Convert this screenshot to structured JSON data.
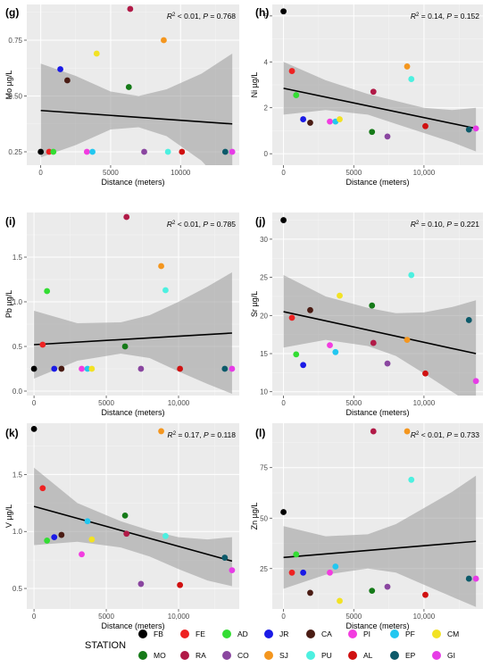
{
  "stations": [
    {
      "code": "FB",
      "color": "#000000"
    },
    {
      "code": "FE",
      "color": "#ee2222"
    },
    {
      "code": "AD",
      "color": "#33dd33"
    },
    {
      "code": "JR",
      "color": "#1a1ae6"
    },
    {
      "code": "CA",
      "color": "#4a1c14"
    },
    {
      "code": "PI",
      "color": "#f23ce0"
    },
    {
      "code": "PF",
      "color": "#22c7f0"
    },
    {
      "code": "CM",
      "color": "#f2e224"
    },
    {
      "code": "MO",
      "color": "#157a18"
    },
    {
      "code": "RA",
      "color": "#b11a47"
    },
    {
      "code": "CO",
      "color": "#8a46a0"
    },
    {
      "code": "SJ",
      "color": "#f4961e"
    },
    {
      "code": "PU",
      "color": "#4df0e0"
    },
    {
      "code": "AL",
      "color": "#d01010"
    },
    {
      "code": "EP",
      "color": "#0c5a6a"
    },
    {
      "code": "GI",
      "color": "#e63ce6"
    }
  ],
  "legend": {
    "title": "STATION"
  },
  "chart_data": [
    {
      "panel": "(g)",
      "type": "scatter",
      "ylabel": "Mo µg/L",
      "xlabel": "Distance (meters)",
      "stat_r2": "< 0.01",
      "stat_p": "0.768",
      "xlim": [
        -1000,
        14200
      ],
      "ylim": [
        0.19,
        0.91
      ],
      "xticks": [
        {
          "v": 0,
          "t": "0"
        },
        {
          "v": 5000,
          "t": "5000"
        },
        {
          "v": 10000,
          "t": "10000"
        }
      ],
      "yticks": [
        {
          "v": 0.25,
          "t": "0.25"
        },
        {
          "v": 0.5,
          "t": "0.50"
        },
        {
          "v": 0.75,
          "t": "0.75"
        }
      ],
      "fit": [
        [
          0,
          0.435
        ],
        [
          13700,
          0.375
        ]
      ],
      "band_upper": [
        [
          0,
          0.645
        ],
        [
          2500,
          0.59
        ],
        [
          5000,
          0.52
        ],
        [
          7000,
          0.5
        ],
        [
          9000,
          0.53
        ],
        [
          11500,
          0.6
        ],
        [
          13700,
          0.69
        ]
      ],
      "band_lower": [
        [
          0,
          0.225
        ],
        [
          2500,
          0.28
        ],
        [
          5000,
          0.35
        ],
        [
          7000,
          0.36
        ],
        [
          9000,
          0.32
        ],
        [
          11500,
          0.21
        ],
        [
          13700,
          0.06
        ]
      ],
      "points": [
        {
          "s": "FB",
          "x": 0,
          "y": 0.25
        },
        {
          "s": "FE",
          "x": 600,
          "y": 0.25
        },
        {
          "s": "AD",
          "x": 900,
          "y": 0.25
        },
        {
          "s": "JR",
          "x": 1400,
          "y": 0.62
        },
        {
          "s": "CA",
          "x": 1900,
          "y": 0.57
        },
        {
          "s": "PI",
          "x": 3300,
          "y": 0.25
        },
        {
          "s": "PF",
          "x": 3700,
          "y": 0.25
        },
        {
          "s": "CM",
          "x": 4000,
          "y": 0.69
        },
        {
          "s": "MO",
          "x": 6300,
          "y": 0.54
        },
        {
          "s": "RA",
          "x": 6400,
          "y": 0.89
        },
        {
          "s": "CO",
          "x": 7400,
          "y": 0.25
        },
        {
          "s": "SJ",
          "x": 8800,
          "y": 0.75
        },
        {
          "s": "PU",
          "x": 9100,
          "y": 0.25
        },
        {
          "s": "AL",
          "x": 10100,
          "y": 0.25
        },
        {
          "s": "EP",
          "x": 13200,
          "y": 0.25
        },
        {
          "s": "GI",
          "x": 13700,
          "y": 0.25
        }
      ]
    },
    {
      "panel": "(h)",
      "type": "scatter",
      "ylabel": "Ni µg/L",
      "xlabel": "Distance (meters)",
      "stat_r2": "0.14",
      "stat_p": "0.152",
      "xlim": [
        -800,
        14200
      ],
      "ylim": [
        -0.5,
        6.5
      ],
      "xticks": [
        {
          "v": 0,
          "t": "0"
        },
        {
          "v": 5000,
          "t": "5000"
        },
        {
          "v": 10000,
          "t": "10,000"
        }
      ],
      "yticks": [
        {
          "v": 0,
          "t": "0"
        },
        {
          "v": 2,
          "t": "2"
        },
        {
          "v": 4,
          "t": "4"
        },
        {
          "v": 6,
          "t": "6"
        }
      ],
      "fit": [
        [
          0,
          2.85
        ],
        [
          13700,
          1.1
        ]
      ],
      "band_upper": [
        [
          0,
          4.0
        ],
        [
          3000,
          3.2
        ],
        [
          6000,
          2.6
        ],
        [
          8000,
          2.3
        ],
        [
          10000,
          2.0
        ],
        [
          12000,
          1.9
        ],
        [
          13700,
          2.0
        ]
      ],
      "band_lower": [
        [
          0,
          1.7
        ],
        [
          3000,
          1.9
        ],
        [
          6000,
          1.7
        ],
        [
          8000,
          1.3
        ],
        [
          10000,
          0.9
        ],
        [
          12000,
          0.5
        ],
        [
          13700,
          0.1
        ]
      ],
      "points": [
        {
          "s": "FB",
          "x": 0,
          "y": 6.2
        },
        {
          "s": "FE",
          "x": 600,
          "y": 3.6
        },
        {
          "s": "AD",
          "x": 900,
          "y": 2.55
        },
        {
          "s": "JR",
          "x": 1400,
          "y": 1.5
        },
        {
          "s": "CA",
          "x": 1900,
          "y": 1.35
        },
        {
          "s": "PI",
          "x": 3300,
          "y": 1.4
        },
        {
          "s": "PF",
          "x": 3700,
          "y": 1.4
        },
        {
          "s": "CM",
          "x": 4000,
          "y": 1.5
        },
        {
          "s": "MO",
          "x": 6300,
          "y": 0.95
        },
        {
          "s": "RA",
          "x": 6400,
          "y": 2.7
        },
        {
          "s": "CO",
          "x": 7400,
          "y": 0.75
        },
        {
          "s": "SJ",
          "x": 8800,
          "y": 3.8
        },
        {
          "s": "PU",
          "x": 9100,
          "y": 3.25
        },
        {
          "s": "AL",
          "x": 10100,
          "y": 1.2
        },
        {
          "s": "EP",
          "x": 13200,
          "y": 1.05
        },
        {
          "s": "GI",
          "x": 13700,
          "y": 1.1
        }
      ]
    },
    {
      "panel": "(i)",
      "type": "scatter",
      "ylabel": "Pb µg/L",
      "xlabel": "Distance (meters)",
      "stat_r2": "< 0.01",
      "stat_p": "0.785",
      "xlim": [
        -500,
        14200
      ],
      "ylim": [
        -0.05,
        2.0
      ],
      "xticks": [
        {
          "v": 0,
          "t": "0"
        },
        {
          "v": 5000,
          "t": "5000"
        },
        {
          "v": 10000,
          "t": "10,000"
        }
      ],
      "yticks": [
        {
          "v": 0,
          "t": "0.0"
        },
        {
          "v": 0.5,
          "t": "0.5"
        },
        {
          "v": 1.0,
          "t": "1.0"
        },
        {
          "v": 1.5,
          "t": "1.5"
        }
      ],
      "fit": [
        [
          0,
          0.52
        ],
        [
          13700,
          0.65
        ]
      ],
      "band_upper": [
        [
          0,
          0.9
        ],
        [
          3000,
          0.76
        ],
        [
          6000,
          0.77
        ],
        [
          8000,
          0.85
        ],
        [
          10000,
          1.0
        ],
        [
          12000,
          1.17
        ],
        [
          13700,
          1.33
        ]
      ],
      "band_lower": [
        [
          0,
          0.14
        ],
        [
          3000,
          0.34
        ],
        [
          6000,
          0.42
        ],
        [
          8000,
          0.37
        ],
        [
          10000,
          0.22
        ],
        [
          12000,
          0.08
        ],
        [
          13700,
          -0.03
        ]
      ],
      "points": [
        {
          "s": "FB",
          "x": 0,
          "y": 0.25
        },
        {
          "s": "FE",
          "x": 600,
          "y": 0.52
        },
        {
          "s": "AD",
          "x": 900,
          "y": 1.12
        },
        {
          "s": "JR",
          "x": 1400,
          "y": 0.25
        },
        {
          "s": "CA",
          "x": 1900,
          "y": 0.25
        },
        {
          "s": "PI",
          "x": 3300,
          "y": 0.25
        },
        {
          "s": "PF",
          "x": 3700,
          "y": 0.25
        },
        {
          "s": "CM",
          "x": 4000,
          "y": 0.25
        },
        {
          "s": "MO",
          "x": 6300,
          "y": 0.5
        },
        {
          "s": "RA",
          "x": 6400,
          "y": 1.95
        },
        {
          "s": "CO",
          "x": 7400,
          "y": 0.25
        },
        {
          "s": "SJ",
          "x": 8800,
          "y": 1.4
        },
        {
          "s": "PU",
          "x": 9100,
          "y": 1.13
        },
        {
          "s": "AL",
          "x": 10100,
          "y": 0.25
        },
        {
          "s": "EP",
          "x": 13200,
          "y": 0.25
        },
        {
          "s": "GI",
          "x": 13700,
          "y": 0.25
        }
      ]
    },
    {
      "panel": "(j)",
      "type": "scatter",
      "ylabel": "Sr µg/L",
      "xlabel": "Distance (meters)",
      "stat_r2": "0.10",
      "stat_p": "0.221",
      "xlim": [
        -800,
        14200
      ],
      "ylim": [
        9.5,
        33.5
      ],
      "xticks": [
        {
          "v": 0,
          "t": "0"
        },
        {
          "v": 5000,
          "t": "5000"
        },
        {
          "v": 10000,
          "t": "10,000"
        }
      ],
      "yticks": [
        {
          "v": 10,
          "t": "10"
        },
        {
          "v": 15,
          "t": "15"
        },
        {
          "v": 20,
          "t": "20"
        },
        {
          "v": 25,
          "t": "25"
        },
        {
          "v": 30,
          "t": "30"
        }
      ],
      "fit": [
        [
          0,
          20.5
        ],
        [
          13700,
          15.0
        ]
      ],
      "band_upper": [
        [
          0,
          25.3
        ],
        [
          3000,
          22.5
        ],
        [
          6000,
          21.0
        ],
        [
          8000,
          20.3
        ],
        [
          10000,
          20.4
        ],
        [
          12000,
          21.1
        ],
        [
          13700,
          22.0
        ]
      ],
      "band_lower": [
        [
          0,
          15.8
        ],
        [
          3000,
          16.8
        ],
        [
          6000,
          16.0
        ],
        [
          8000,
          14.7
        ],
        [
          10000,
          12.4
        ],
        [
          12000,
          10.0
        ],
        [
          13700,
          8.0
        ]
      ],
      "points": [
        {
          "s": "FB",
          "x": 0,
          "y": 32.5
        },
        {
          "s": "FE",
          "x": 600,
          "y": 19.7
        },
        {
          "s": "AD",
          "x": 900,
          "y": 14.9
        },
        {
          "s": "JR",
          "x": 1400,
          "y": 13.5
        },
        {
          "s": "CA",
          "x": 1900,
          "y": 20.7
        },
        {
          "s": "PI",
          "x": 3300,
          "y": 16.1
        },
        {
          "s": "PF",
          "x": 3700,
          "y": 15.2
        },
        {
          "s": "CM",
          "x": 4000,
          "y": 22.6
        },
        {
          "s": "MO",
          "x": 6300,
          "y": 21.3
        },
        {
          "s": "RA",
          "x": 6400,
          "y": 16.4
        },
        {
          "s": "CO",
          "x": 7400,
          "y": 13.7
        },
        {
          "s": "SJ",
          "x": 8800,
          "y": 16.8
        },
        {
          "s": "PU",
          "x": 9100,
          "y": 25.3
        },
        {
          "s": "AL",
          "x": 10100,
          "y": 12.4
        },
        {
          "s": "EP",
          "x": 13200,
          "y": 19.4
        },
        {
          "s": "GI",
          "x": 13700,
          "y": 11.4
        }
      ]
    },
    {
      "panel": "(k)",
      "type": "scatter",
      "ylabel": "V µg/L",
      "xlabel": "Distance (meters)",
      "stat_r2": "0.17",
      "stat_p": "0.118",
      "xlim": [
        -500,
        14200
      ],
      "ylim": [
        0.32,
        1.95
      ],
      "xticks": [
        {
          "v": 0,
          "t": "0"
        },
        {
          "v": 5000,
          "t": "5000"
        },
        {
          "v": 10000,
          "t": "10,000"
        }
      ],
      "yticks": [
        {
          "v": 0.5,
          "t": "0.5"
        },
        {
          "v": 1.0,
          "t": "1.0"
        },
        {
          "v": 1.5,
          "t": "1.5"
        }
      ],
      "fit": [
        [
          0,
          1.22
        ],
        [
          13700,
          0.74
        ]
      ],
      "band_upper": [
        [
          0,
          1.56
        ],
        [
          3000,
          1.25
        ],
        [
          6000,
          1.09
        ],
        [
          8000,
          1.01
        ],
        [
          10000,
          0.95
        ],
        [
          12000,
          0.93
        ],
        [
          13700,
          0.95
        ]
      ],
      "band_lower": [
        [
          0,
          0.88
        ],
        [
          3000,
          0.91
        ],
        [
          6000,
          0.86
        ],
        [
          8000,
          0.78
        ],
        [
          10000,
          0.67
        ],
        [
          12000,
          0.57
        ],
        [
          13700,
          0.52
        ]
      ],
      "points": [
        {
          "s": "FB",
          "x": 0,
          "y": 1.9
        },
        {
          "s": "FE",
          "x": 600,
          "y": 1.38
        },
        {
          "s": "AD",
          "x": 900,
          "y": 0.92
        },
        {
          "s": "JR",
          "x": 1400,
          "y": 0.95
        },
        {
          "s": "CA",
          "x": 1900,
          "y": 0.97
        },
        {
          "s": "PI",
          "x": 3300,
          "y": 0.8
        },
        {
          "s": "PF",
          "x": 3700,
          "y": 1.09
        },
        {
          "s": "CM",
          "x": 4000,
          "y": 0.93
        },
        {
          "s": "MO",
          "x": 6300,
          "y": 1.14
        },
        {
          "s": "RA",
          "x": 6400,
          "y": 0.98
        },
        {
          "s": "CO",
          "x": 7400,
          "y": 0.54
        },
        {
          "s": "SJ",
          "x": 8800,
          "y": 1.88
        },
        {
          "s": "PU",
          "x": 9100,
          "y": 0.96
        },
        {
          "s": "AL",
          "x": 10100,
          "y": 0.53
        },
        {
          "s": "EP",
          "x": 13200,
          "y": 0.77
        },
        {
          "s": "GI",
          "x": 13700,
          "y": 0.66
        }
      ]
    },
    {
      "panel": "(l)",
      "type": "scatter",
      "ylabel": "Zn µg/L",
      "xlabel": "Distance (meters)",
      "stat_r2": "< 0.01",
      "stat_p": "0.733",
      "xlim": [
        -800,
        14200
      ],
      "ylim": [
        5,
        97
      ],
      "xticks": [
        {
          "v": 0,
          "t": "0"
        },
        {
          "v": 5000,
          "t": "5000"
        },
        {
          "v": 10000,
          "t": "10,000"
        }
      ],
      "yticks": [
        {
          "v": 25,
          "t": "25"
        },
        {
          "v": 50,
          "t": "50"
        },
        {
          "v": 75,
          "t": "75"
        }
      ],
      "fit": [
        [
          0,
          30.5
        ],
        [
          13700,
          38.5
        ]
      ],
      "band_upper": [
        [
          0,
          46
        ],
        [
          3000,
          41
        ],
        [
          6000,
          42
        ],
        [
          8000,
          47
        ],
        [
          10000,
          55
        ],
        [
          12000,
          63
        ],
        [
          13700,
          71
        ]
      ],
      "band_lower": [
        [
          0,
          15
        ],
        [
          3000,
          22
        ],
        [
          6000,
          25
        ],
        [
          8000,
          23
        ],
        [
          10000,
          17
        ],
        [
          12000,
          11
        ],
        [
          13700,
          6
        ]
      ],
      "points": [
        {
          "s": "FB",
          "x": 0,
          "y": 53
        },
        {
          "s": "FE",
          "x": 600,
          "y": 23
        },
        {
          "s": "AD",
          "x": 900,
          "y": 32
        },
        {
          "s": "JR",
          "x": 1400,
          "y": 23
        },
        {
          "s": "CA",
          "x": 1900,
          "y": 13
        },
        {
          "s": "PI",
          "x": 3300,
          "y": 23
        },
        {
          "s": "PF",
          "x": 3700,
          "y": 26
        },
        {
          "s": "CM",
          "x": 4000,
          "y": 9
        },
        {
          "s": "MO",
          "x": 6300,
          "y": 14
        },
        {
          "s": "RA",
          "x": 6400,
          "y": 93
        },
        {
          "s": "CO",
          "x": 7400,
          "y": 16
        },
        {
          "s": "SJ",
          "x": 8800,
          "y": 93
        },
        {
          "s": "PU",
          "x": 9100,
          "y": 69
        },
        {
          "s": "AL",
          "x": 10100,
          "y": 12
        },
        {
          "s": "EP",
          "x": 13200,
          "y": 20
        },
        {
          "s": "GI",
          "x": 13700,
          "y": 20
        }
      ]
    }
  ]
}
